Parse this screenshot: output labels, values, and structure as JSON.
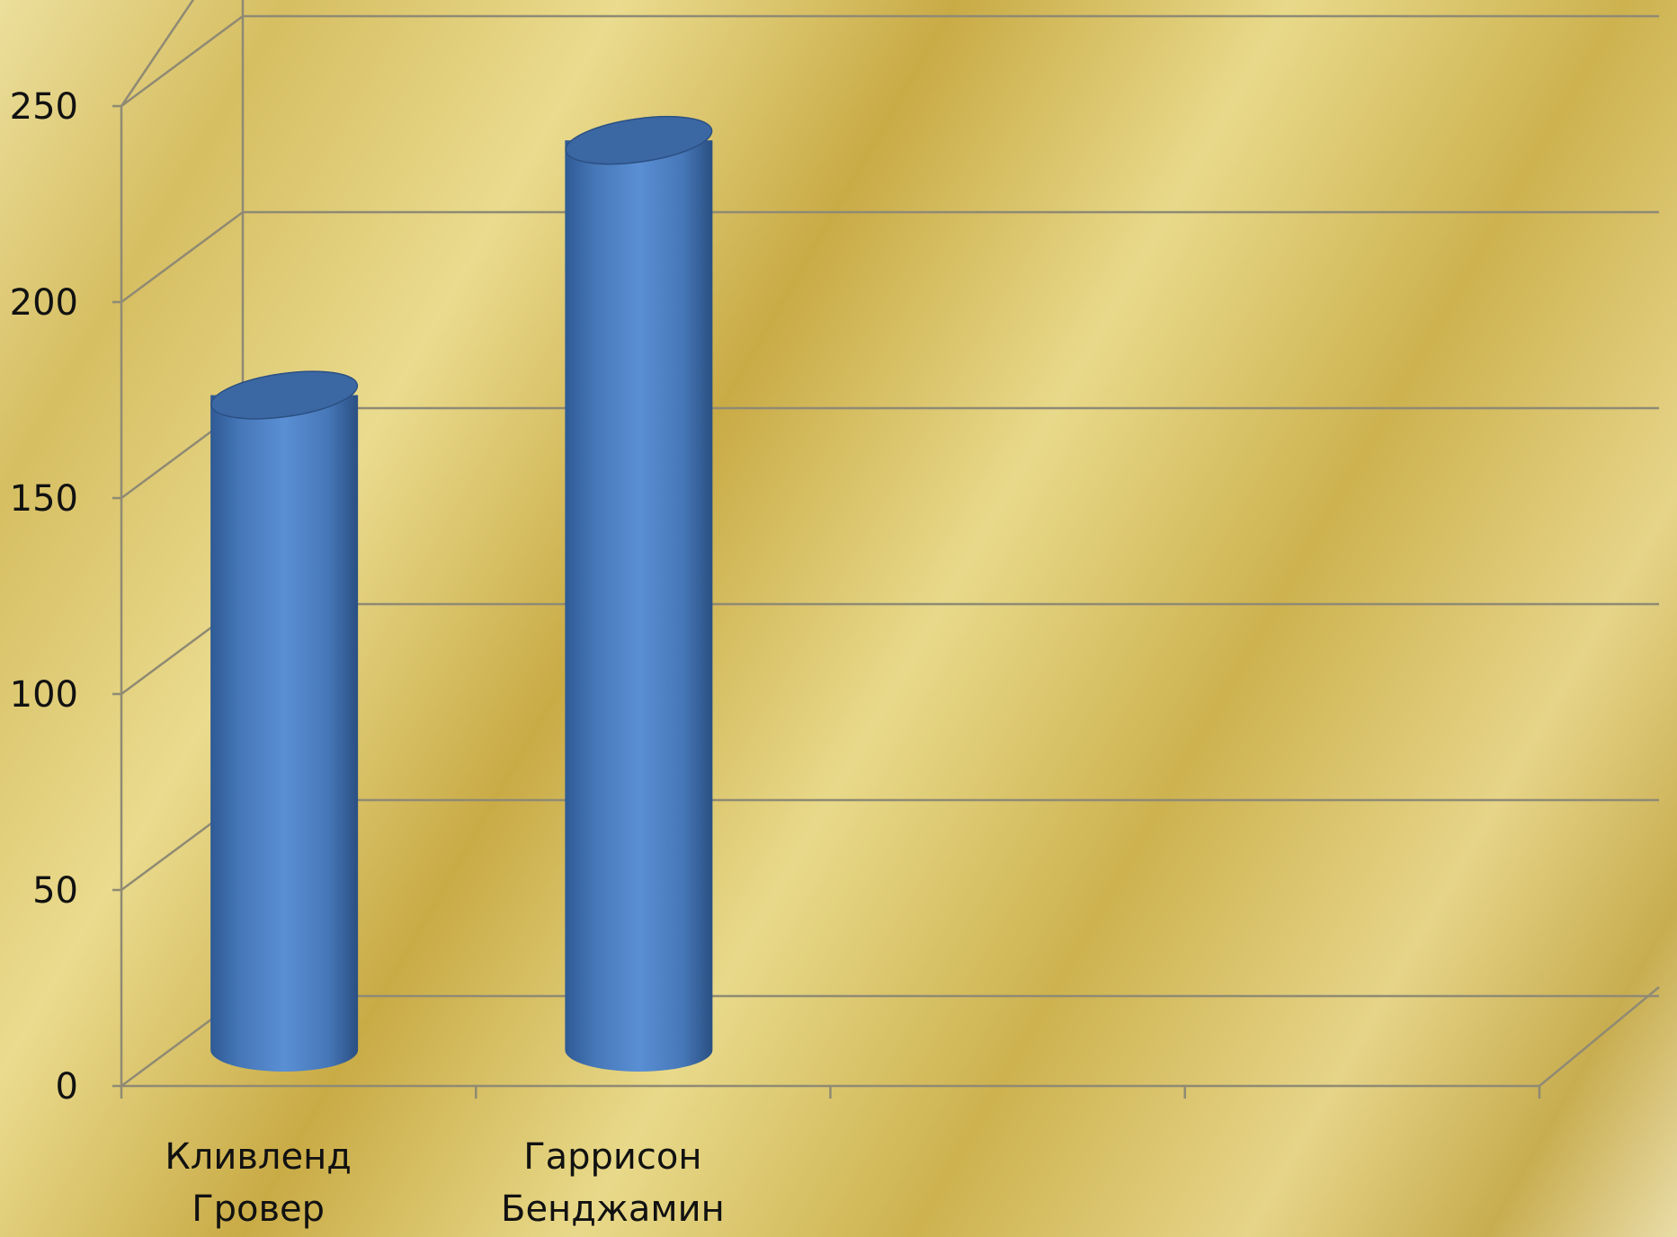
{
  "chart_data": {
    "type": "bar",
    "style": "3d-cylinder",
    "categories": [
      [
        "Кливленд",
        "Гровер"
      ],
      [
        "Гаррисон",
        "Бенджамин"
      ],
      [
        "",
        ""
      ],
      [
        "",
        ""
      ]
    ],
    "series": [
      {
        "values": [
          168,
          233,
          null,
          null
        ]
      }
    ],
    "ylim": [
      0,
      250
    ],
    "yticks": [
      "0",
      "50",
      "100",
      "150",
      "200",
      "250"
    ],
    "grid": true,
    "legend": "none",
    "colors": {
      "bar": "#4f81bd",
      "bar_dark": "#2b5083",
      "bar_top": "#3b67a3",
      "grid": "#8f8a74"
    }
  }
}
